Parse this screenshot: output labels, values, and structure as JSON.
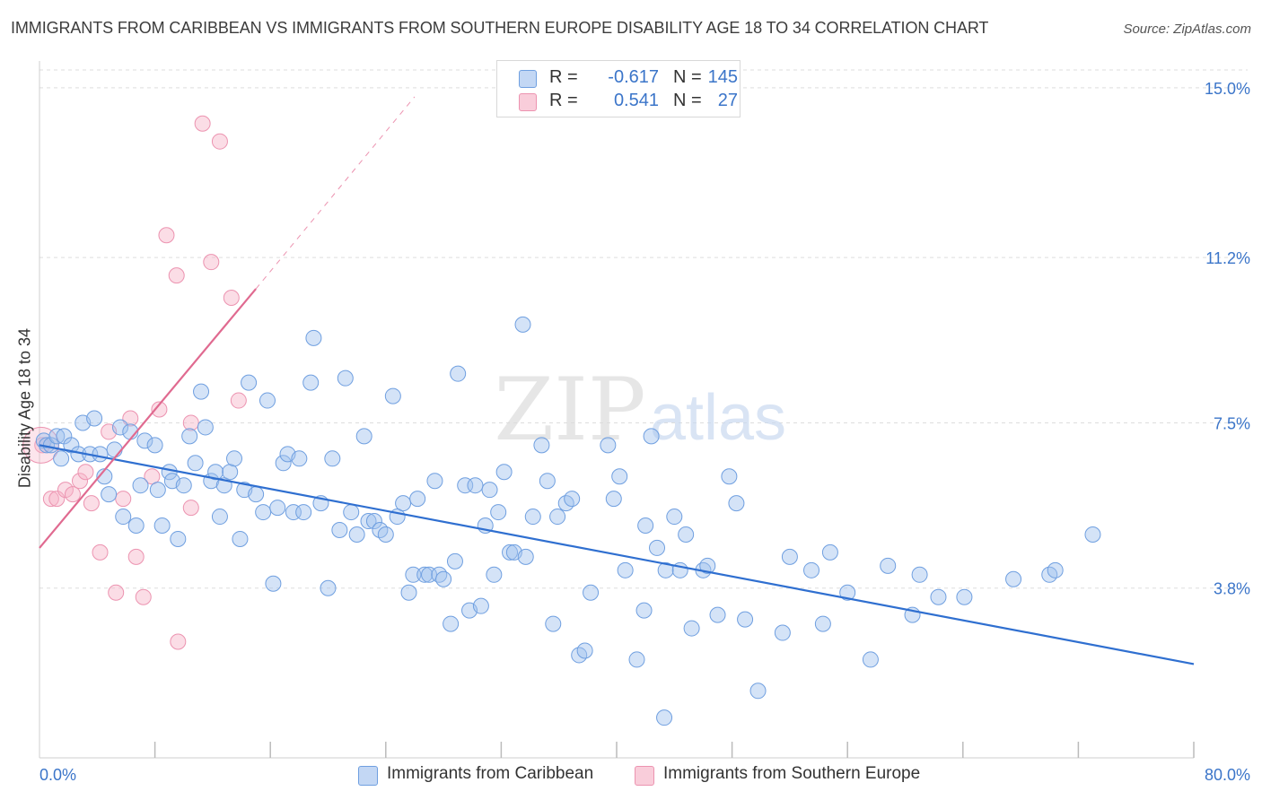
{
  "title": "IMMIGRANTS FROM CARIBBEAN VS IMMIGRANTS FROM SOUTHERN EUROPE DISABILITY AGE 18 TO 34 CORRELATION CHART",
  "source": "Source: ZipAtlas.com",
  "watermark": {
    "zip": "ZIP",
    "atlas": "atlas"
  },
  "legend": {
    "r_label": "R =",
    "n_label": "N =",
    "rows": [
      {
        "r": "-0.617",
        "n": "145",
        "color": "#a9c6f0"
      },
      {
        "r": "0.541",
        "n": "27",
        "color": "#f6b8cb"
      }
    ]
  },
  "bottom_legend": [
    {
      "label": "Immigrants from Caribbean",
      "color": "#a9c6f0"
    },
    {
      "label": "Immigrants from Southern Europe",
      "color": "#f6b8cb"
    }
  ],
  "colors": {
    "blue_line": "#2f6fd0",
    "blue_fill": "rgba(160,192,238,0.45)",
    "blue_stroke": "#6f9fe0",
    "pink_line": "#e06a90",
    "pink_fill": "rgba(246,180,200,0.45)",
    "pink_stroke": "#ec93b0",
    "grid": "#dddddd",
    "tick_text": "#3b75c9"
  },
  "chart_data": {
    "type": "scatter",
    "title": "IMMIGRANTS FROM CARIBBEAN VS IMMIGRANTS FROM SOUTHERN EUROPE DISABILITY AGE 18 TO 34 CORRELATION CHART",
    "xlabel": "",
    "ylabel": "Disability Age 18 to 34",
    "xlim": [
      0,
      80
    ],
    "ylim": [
      0,
      15.4
    ],
    "x_tick_labels": [
      {
        "value": 0,
        "label": "0.0%"
      },
      {
        "value": 80,
        "label": "80.0%"
      }
    ],
    "y_tick_labels": [
      {
        "value": 3.8,
        "label": "3.8%"
      },
      {
        "value": 7.5,
        "label": "7.5%"
      },
      {
        "value": 11.2,
        "label": "11.2%"
      },
      {
        "value": 15.0,
        "label": "15.0%"
      }
    ],
    "x_minor_ticks": [
      8,
      16,
      24,
      32,
      40,
      48,
      56,
      64,
      72,
      80
    ],
    "grid": true,
    "legend_position": "top-center",
    "series": [
      {
        "name": "Immigrants from Caribbean",
        "color": "#6f9fe0",
        "trend": {
          "x": [
            0,
            80
          ],
          "y": [
            7.0,
            2.1
          ]
        },
        "points": [
          [
            0.3,
            7.1
          ],
          [
            0.5,
            7.0
          ],
          [
            0.8,
            7.0
          ],
          [
            1.2,
            7.2
          ],
          [
            1.5,
            6.7
          ],
          [
            1.7,
            7.2
          ],
          [
            2.2,
            7.0
          ],
          [
            2.7,
            6.8
          ],
          [
            3.0,
            7.5
          ],
          [
            3.5,
            6.8
          ],
          [
            3.8,
            7.6
          ],
          [
            4.2,
            6.8
          ],
          [
            4.5,
            6.3
          ],
          [
            4.8,
            5.9
          ],
          [
            5.2,
            6.9
          ],
          [
            5.6,
            7.4
          ],
          [
            5.8,
            5.4
          ],
          [
            6.3,
            7.3
          ],
          [
            6.7,
            5.2
          ],
          [
            7.0,
            6.1
          ],
          [
            7.3,
            7.1
          ],
          [
            8.0,
            7.0
          ],
          [
            8.2,
            6.0
          ],
          [
            8.5,
            5.2
          ],
          [
            9.0,
            6.4
          ],
          [
            9.2,
            6.2
          ],
          [
            9.6,
            4.9
          ],
          [
            10.0,
            6.1
          ],
          [
            10.4,
            7.2
          ],
          [
            10.8,
            6.6
          ],
          [
            11.2,
            8.2
          ],
          [
            11.5,
            7.4
          ],
          [
            11.9,
            6.2
          ],
          [
            12.2,
            6.4
          ],
          [
            12.5,
            5.4
          ],
          [
            12.8,
            6.1
          ],
          [
            13.2,
            6.4
          ],
          [
            13.5,
            6.7
          ],
          [
            13.9,
            4.9
          ],
          [
            14.2,
            6.0
          ],
          [
            14.5,
            8.4
          ],
          [
            15.0,
            5.9
          ],
          [
            15.5,
            5.5
          ],
          [
            15.8,
            8.0
          ],
          [
            16.2,
            3.9
          ],
          [
            16.5,
            5.6
          ],
          [
            16.9,
            6.6
          ],
          [
            17.2,
            6.8
          ],
          [
            17.6,
            5.5
          ],
          [
            18.0,
            6.7
          ],
          [
            18.3,
            5.5
          ],
          [
            18.8,
            8.4
          ],
          [
            19.0,
            9.4
          ],
          [
            19.5,
            5.7
          ],
          [
            20.0,
            3.8
          ],
          [
            20.3,
            6.7
          ],
          [
            20.8,
            5.1
          ],
          [
            21.2,
            8.5
          ],
          [
            21.6,
            5.5
          ],
          [
            22.0,
            5.0
          ],
          [
            22.5,
            7.2
          ],
          [
            22.8,
            5.3
          ],
          [
            23.2,
            5.3
          ],
          [
            23.6,
            5.1
          ],
          [
            24.0,
            5.0
          ],
          [
            24.5,
            8.1
          ],
          [
            24.8,
            5.4
          ],
          [
            25.2,
            5.7
          ],
          [
            25.6,
            3.7
          ],
          [
            25.9,
            4.1
          ],
          [
            26.2,
            5.8
          ],
          [
            26.7,
            4.1
          ],
          [
            27.0,
            4.1
          ],
          [
            27.4,
            6.2
          ],
          [
            27.7,
            4.1
          ],
          [
            28.0,
            4.0
          ],
          [
            28.5,
            3.0
          ],
          [
            28.8,
            4.4
          ],
          [
            29.0,
            8.6
          ],
          [
            29.5,
            6.1
          ],
          [
            29.8,
            3.3
          ],
          [
            30.2,
            6.1
          ],
          [
            30.6,
            3.4
          ],
          [
            30.9,
            5.2
          ],
          [
            31.2,
            6.0
          ],
          [
            31.5,
            4.1
          ],
          [
            31.8,
            5.5
          ],
          [
            32.2,
            6.4
          ],
          [
            32.6,
            4.6
          ],
          [
            32.9,
            4.6
          ],
          [
            33.5,
            9.7
          ],
          [
            33.7,
            4.5
          ],
          [
            34.2,
            5.4
          ],
          [
            34.8,
            7.0
          ],
          [
            35.2,
            6.2
          ],
          [
            35.6,
            3.0
          ],
          [
            35.9,
            5.4
          ],
          [
            36.5,
            5.7
          ],
          [
            36.9,
            5.8
          ],
          [
            37.4,
            2.3
          ],
          [
            37.8,
            2.4
          ],
          [
            38.2,
            3.7
          ],
          [
            39.4,
            7.0
          ],
          [
            39.8,
            5.8
          ],
          [
            40.2,
            6.3
          ],
          [
            40.6,
            4.2
          ],
          [
            41.4,
            2.2
          ],
          [
            41.9,
            3.3
          ],
          [
            42.0,
            5.2
          ],
          [
            42.4,
            7.2
          ],
          [
            42.8,
            4.7
          ],
          [
            43.4,
            4.2
          ],
          [
            44.0,
            5.4
          ],
          [
            44.4,
            4.2
          ],
          [
            44.8,
            5.0
          ],
          [
            45.2,
            2.9
          ],
          [
            46.0,
            4.2
          ],
          [
            46.3,
            4.3
          ],
          [
            47.0,
            3.2
          ],
          [
            47.8,
            6.3
          ],
          [
            48.3,
            5.7
          ],
          [
            48.9,
            3.1
          ],
          [
            49.8,
            1.5
          ],
          [
            51.5,
            2.8
          ],
          [
            52.0,
            4.5
          ],
          [
            53.5,
            4.2
          ],
          [
            54.3,
            3.0
          ],
          [
            54.8,
            4.6
          ],
          [
            56.0,
            3.7
          ],
          [
            57.6,
            2.2
          ],
          [
            58.8,
            4.3
          ],
          [
            60.5,
            3.2
          ],
          [
            61.0,
            4.1
          ],
          [
            62.3,
            3.6
          ],
          [
            64.1,
            3.6
          ],
          [
            67.5,
            4.0
          ],
          [
            70.0,
            4.1
          ],
          [
            70.4,
            4.2
          ],
          [
            73.0,
            5.0
          ],
          [
            43.3,
            0.9
          ]
        ]
      },
      {
        "name": "Immigrants from Southern Europe",
        "color": "#ec93b0",
        "trend": {
          "x": [
            0,
            15
          ],
          "y": [
            4.7,
            10.5
          ]
        },
        "trend_extension": {
          "x": [
            15,
            26
          ],
          "y": [
            10.5,
            14.8
          ]
        },
        "points": [
          [
            0.2,
            7.0
          ],
          [
            0.8,
            5.8
          ],
          [
            1.2,
            5.8
          ],
          [
            1.8,
            6.0
          ],
          [
            2.3,
            5.9
          ],
          [
            2.8,
            6.2
          ],
          [
            3.2,
            6.4
          ],
          [
            3.6,
            5.7
          ],
          [
            4.2,
            4.6
          ],
          [
            4.8,
            7.3
          ],
          [
            5.3,
            3.7
          ],
          [
            5.8,
            5.8
          ],
          [
            6.3,
            7.6
          ],
          [
            6.7,
            4.5
          ],
          [
            7.2,
            3.6
          ],
          [
            7.8,
            6.3
          ],
          [
            8.3,
            7.8
          ],
          [
            8.8,
            11.7
          ],
          [
            9.5,
            10.8
          ],
          [
            9.6,
            2.6
          ],
          [
            10.5,
            5.6
          ],
          [
            10.5,
            7.5
          ],
          [
            11.3,
            14.2
          ],
          [
            11.9,
            11.1
          ],
          [
            12.5,
            13.8
          ],
          [
            13.3,
            10.3
          ],
          [
            13.8,
            8.0
          ]
        ]
      }
    ]
  }
}
